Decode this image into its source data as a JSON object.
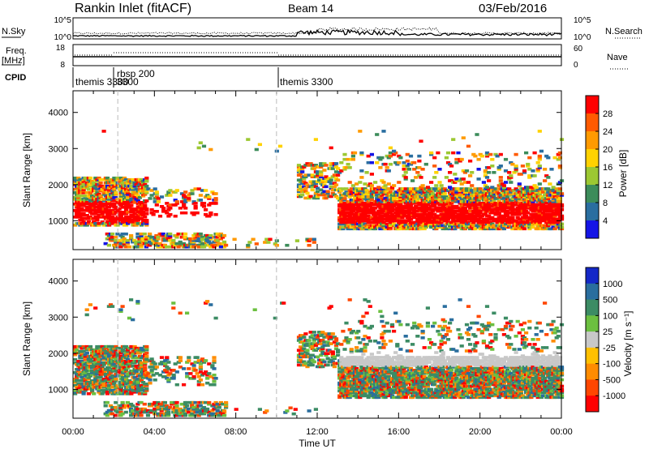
{
  "header": {
    "station": "Rankin Inlet (fitACF)",
    "beam": "Beam 14",
    "date": "03/Feb/2016"
  },
  "nsky_panel": {
    "left_label": "N.Sky",
    "left_ticks": [
      "10^5",
      "10^0"
    ],
    "right_ticks": [
      "10^5",
      "10^0"
    ],
    "right_label": "N.Search"
  },
  "freq_panel": {
    "left_label_1": "Freq.",
    "left_label_2": "[MHz]",
    "left_ticks": [
      "18",
      "8"
    ],
    "right_ticks": [
      "60",
      "0"
    ],
    "right_label": "Nave"
  },
  "cpid": {
    "label": "CPID",
    "segments": [
      {
        "text": "themis 3300",
        "start_hour": 0.0
      },
      {
        "text": "rbsp 200",
        "start_hour": 2.2
      },
      {
        "text": "3300",
        "start_hour": 2.2
      },
      {
        "text": "themis 3300",
        "start_hour": 10.0
      }
    ]
  },
  "chart_data": [
    {
      "type": "heatmap",
      "name": "power",
      "ylabel": "Slant Range [km]",
      "x_range_hours": [
        0,
        24
      ],
      "ylim": [
        200,
        4600
      ],
      "yticks": [
        1000,
        2000,
        3000,
        4000
      ],
      "colorbar": {
        "label": "Power [dB]",
        "ticks": [
          "28",
          "24",
          "20",
          "16",
          "12",
          "8",
          "4"
        ],
        "colors": [
          "#ff0000",
          "#ff5a00",
          "#ff9a00",
          "#ffd200",
          "#9cc832",
          "#3c8c5a",
          "#2a6ea0",
          "#1414e6"
        ]
      }
    },
    {
      "type": "heatmap",
      "name": "velocity",
      "ylabel": "Slant Range [km]",
      "xlabel": "Time UT",
      "x_range_hours": [
        0,
        24
      ],
      "xticks": [
        "00:00",
        "04:00",
        "08:00",
        "12:00",
        "16:00",
        "20:00",
        "00:00"
      ],
      "ylim": [
        200,
        4600
      ],
      "yticks": [
        1000,
        2000,
        3000,
        4000
      ],
      "colorbar": {
        "label": "Velocity [m s⁻¹]",
        "ticks": [
          "1000",
          "500",
          "100",
          "25",
          "-25",
          "-100",
          "-500",
          "-1000"
        ],
        "colors": [
          "#1428c8",
          "#2a6e9e",
          "#3c8c64",
          "#6cc040",
          "#c8c8c8",
          "#ffc000",
          "#ff8c00",
          "#ff4600",
          "#ff0000"
        ]
      }
    }
  ]
}
